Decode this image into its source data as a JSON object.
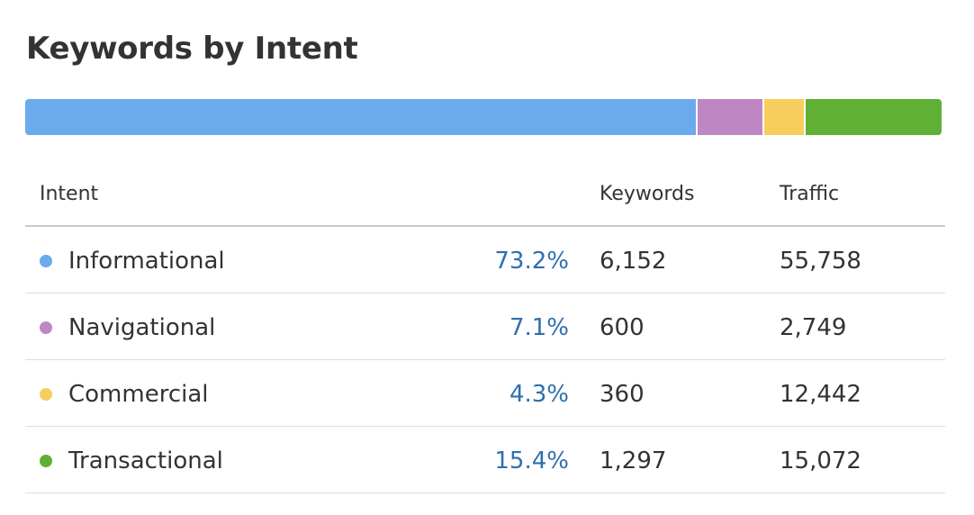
{
  "title": "Keywords by Intent",
  "table": {
    "headers": {
      "intent": "Intent",
      "keywords": "Keywords",
      "traffic": "Traffic"
    },
    "rows": [
      {
        "intent": "Informational",
        "share": "73.2%",
        "keywords": "6,152",
        "traffic": "55,758",
        "color": "#6aaaed"
      },
      {
        "intent": "Navigational",
        "share": "7.1%",
        "keywords": "600",
        "traffic": "2,749",
        "color": "#bf86c4"
      },
      {
        "intent": "Commercial",
        "share": "4.3%",
        "keywords": "360",
        "traffic": "12,442",
        "color": "#f7ce5d"
      },
      {
        "intent": "Transactional",
        "share": "15.4%",
        "keywords": "1,297",
        "traffic": "15,072",
        "color": "#5fb034"
      }
    ]
  },
  "chart_data": {
    "type": "bar",
    "stacked": true,
    "orientation": "horizontal",
    "title": "Keywords by Intent",
    "categories": [
      "Informational",
      "Navigational",
      "Commercial",
      "Transactional"
    ],
    "values": [
      73.2,
      7.1,
      4.3,
      15.4
    ],
    "colors": [
      "#6aaaed",
      "#bf86c4",
      "#f7ce5d",
      "#5fb034"
    ],
    "xlim": [
      0,
      100
    ],
    "grid": false,
    "legend": "none"
  }
}
